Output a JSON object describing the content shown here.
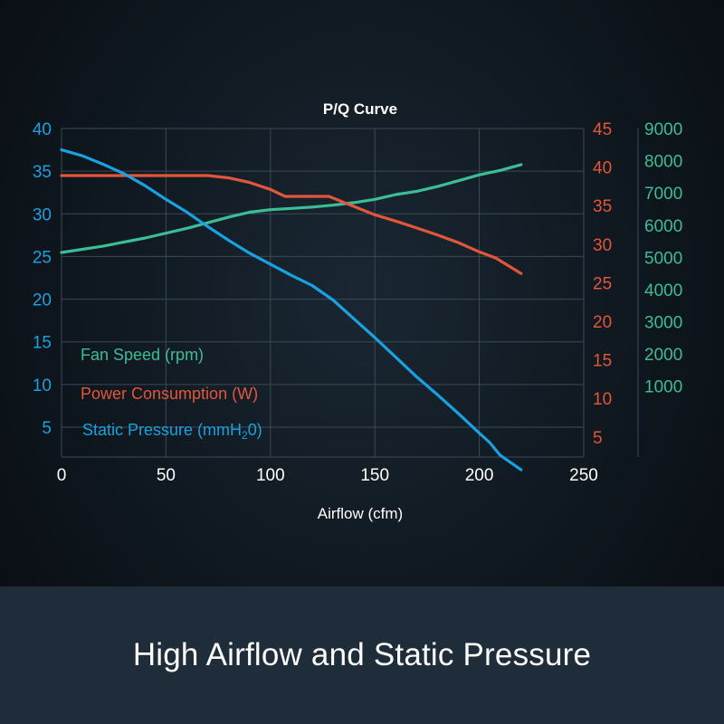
{
  "colors": {
    "fan": "#3dbd96",
    "power": "#e2563b",
    "pressure": "#1aa1e0",
    "text": "#ffffff",
    "grid": "#3b4a57"
  },
  "footer": {
    "title": "High Airflow and Static Pressure"
  },
  "chart_data": {
    "type": "line",
    "title": "P/Q Curve",
    "xlabel": "Airflow (cfm)",
    "xlim": [
      0,
      250
    ],
    "x_ticks": [
      "0",
      "50",
      "100",
      "150",
      "200",
      "250"
    ],
    "grid": true,
    "legend_position": "bottom-left",
    "axes": {
      "left": {
        "lim": [
          1.5,
          40
        ],
        "ticks": [
          5,
          10,
          15,
          20,
          25,
          30,
          35,
          40
        ]
      },
      "right1": {
        "lim": [
          2.4,
          45
        ],
        "ticks": [
          5,
          10,
          15,
          20,
          25,
          30,
          35,
          40,
          45
        ]
      },
      "right2": {
        "lim": [
          -1200,
          9000
        ],
        "ticks": [
          1000,
          2000,
          3000,
          4000,
          5000,
          6000,
          7000,
          8000,
          9000
        ]
      }
    },
    "legend": {
      "fan": "Fan Speed (rpm)",
      "power": "Power Consumption (W)",
      "pressure_main": "Static Pressure (mmH",
      "pressure_sub": "2",
      "pressure_end": "0)"
    },
    "series": [
      {
        "key": "fan",
        "axis": "right2",
        "unit": "rpm",
        "x": [
          0,
          20,
          40,
          60,
          80,
          90,
          100,
          110,
          120,
          130,
          140,
          150,
          160,
          170,
          180,
          190,
          200,
          210,
          220
        ],
        "values": [
          5150,
          5350,
          5600,
          5900,
          6250,
          6400,
          6480,
          6520,
          6560,
          6620,
          6700,
          6800,
          6950,
          7050,
          7200,
          7380,
          7560,
          7700,
          7880
        ]
      },
      {
        "key": "power",
        "axis": "right1",
        "unit": "W",
        "x": [
          0,
          20,
          40,
          60,
          70,
          80,
          90,
          100,
          107,
          115,
          128,
          140,
          150,
          160,
          170,
          180,
          190,
          200,
          208,
          220
        ],
        "values": [
          38.9,
          38.9,
          38.9,
          38.9,
          38.9,
          38.6,
          38.0,
          37.1,
          36.2,
          36.2,
          36.2,
          34.9,
          33.8,
          33.0,
          32.1,
          31.2,
          30.2,
          29.0,
          28.2,
          26.2
        ]
      },
      {
        "key": "pressure",
        "axis": "left",
        "unit": "mmH2O",
        "x": [
          0,
          10,
          20,
          30,
          40,
          50,
          60,
          70,
          80,
          90,
          100,
          110,
          120,
          130,
          140,
          150,
          160,
          170,
          180,
          190,
          200,
          205,
          210,
          220
        ],
        "values": [
          37.5,
          36.8,
          35.8,
          34.7,
          33.3,
          31.7,
          30.2,
          28.5,
          26.9,
          25.4,
          24.1,
          22.8,
          21.6,
          19.9,
          17.7,
          15.5,
          13.2,
          10.9,
          8.8,
          6.6,
          4.3,
          3.2,
          1.7,
          0.0
        ]
      }
    ]
  }
}
